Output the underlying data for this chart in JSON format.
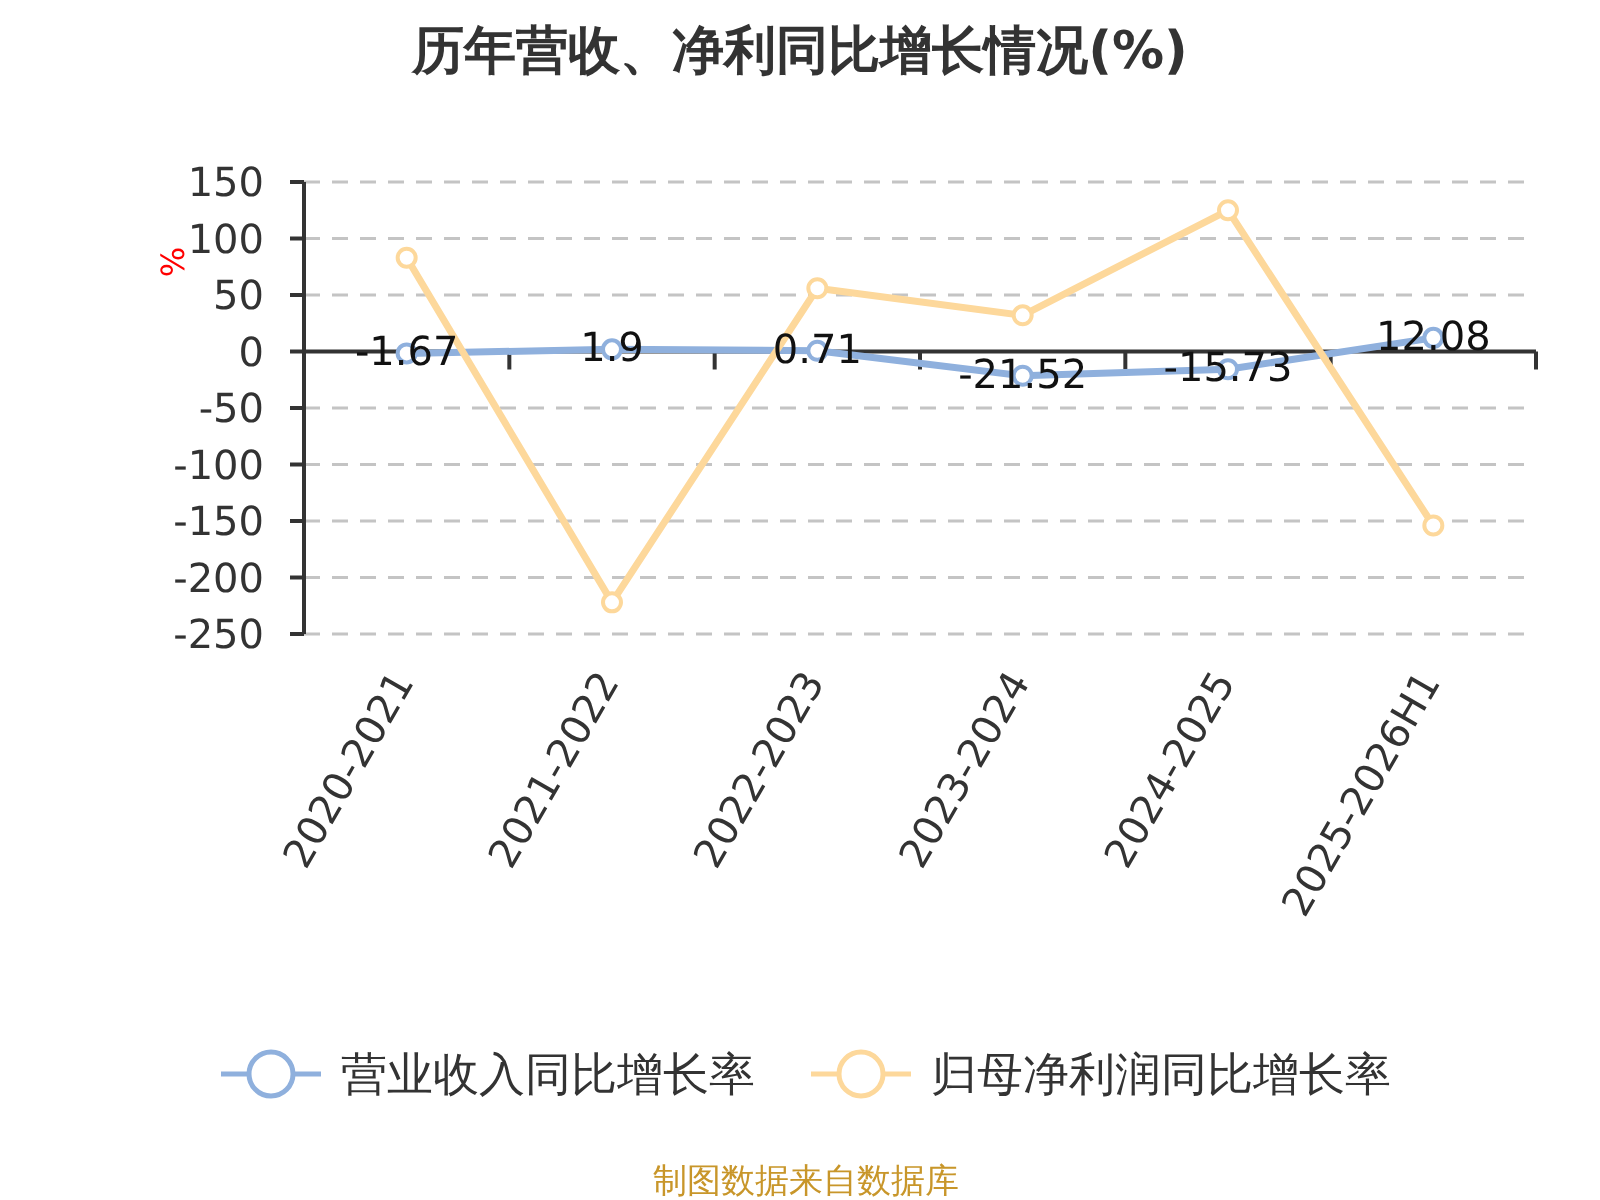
{
  "chart_data": {
    "type": "line",
    "title": "历年营收、净利同比增长情况(%)",
    "ylabel": "%",
    "categories": [
      "2020-2021",
      "2021-2022",
      "2022-2023",
      "2023-2024",
      "2024-2025",
      "2025-2026H1"
    ],
    "series": [
      {
        "name": "营业收入同比增长率",
        "color": "#8fb0dd",
        "values": [
          -1.67,
          1.9,
          0.71,
          -21.52,
          -15.73,
          12.08
        ],
        "value_labels": [
          "-1.67",
          "1.9",
          "0.71",
          "-21.52",
          "-15.73",
          "12.08"
        ]
      },
      {
        "name": "归母净利润同比增长率",
        "color": "#fdd89b",
        "values": [
          83,
          -222,
          56,
          32,
          125,
          -154
        ]
      }
    ],
    "ylim": [
      -250,
      150
    ],
    "yticks": [
      -250,
      -200,
      -150,
      -100,
      -50,
      0,
      50,
      100,
      150
    ],
    "grid": "y",
    "legend": "bottom",
    "marker": "circle",
    "line_style": "solid",
    "annotations": [
      "制图数据来自数据库"
    ]
  }
}
